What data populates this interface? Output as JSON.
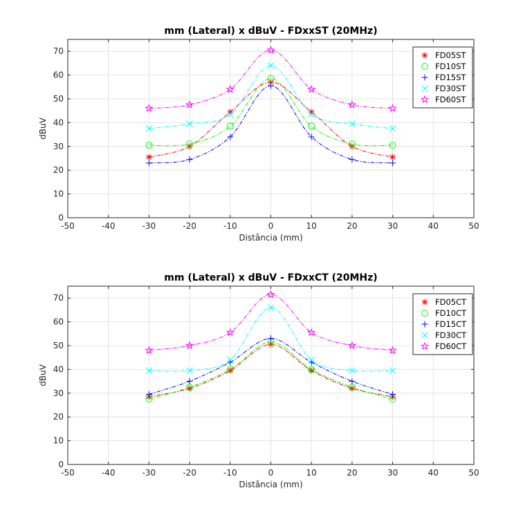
{
  "chart_data": [
    {
      "type": "line",
      "title": "mm (Lateral) x dBuV - FDxxST (20MHz)",
      "xlabel": "Distância (mm)",
      "ylabel": "dBuV",
      "xlim": [
        -50,
        50
      ],
      "ylim": [
        0,
        75
      ],
      "xticks": [
        "-50",
        "-40",
        "-30",
        "-20",
        "-10",
        "0",
        "10",
        "20",
        "30",
        "40",
        "50"
      ],
      "yticks": [
        "0",
        "10",
        "20",
        "30",
        "40",
        "50",
        "60",
        "70"
      ],
      "grid": true,
      "legend_position": "top-right",
      "series": [
        {
          "name": "FD05ST",
          "color": "#ff0000",
          "marker": "asterisk",
          "x": [
            -30,
            -20,
            -10,
            0,
            10,
            20,
            30
          ],
          "y": [
            25.5,
            30,
            44.5,
            57,
            44.5,
            30,
            25.5
          ]
        },
        {
          "name": "FD10ST",
          "color": "#00ff00",
          "marker": "circle",
          "x": [
            -30,
            -20,
            -10,
            0,
            10,
            20,
            30
          ],
          "y": [
            30.5,
            31,
            38.5,
            58.5,
            38.5,
            31,
            30.5
          ]
        },
        {
          "name": "FD15ST",
          "color": "#0000ff",
          "marker": "plus",
          "x": [
            -30,
            -20,
            -10,
            0,
            10,
            20,
            30
          ],
          "y": [
            23,
            24.5,
            34,
            55.5,
            34,
            24.5,
            23
          ]
        },
        {
          "name": "FD30ST",
          "color": "#00ffff",
          "marker": "cross",
          "x": [
            -30,
            -20,
            -10,
            0,
            10,
            20,
            30
          ],
          "y": [
            37.5,
            39.5,
            43.5,
            64,
            43.5,
            39.5,
            37.5
          ]
        },
        {
          "name": "FD60ST",
          "color": "#ff00ff",
          "marker": "star",
          "x": [
            -30,
            -20,
            -10,
            0,
            10,
            20,
            30
          ],
          "y": [
            46,
            47.5,
            54,
            70.5,
            54,
            47.5,
            46
          ]
        }
      ]
    },
    {
      "type": "line",
      "title": "mm (Lateral) x dBuV - FDxxCT (20MHz)",
      "xlabel": "Distância (mm)",
      "ylabel": "dBuV",
      "xlim": [
        -50,
        50
      ],
      "ylim": [
        0,
        75
      ],
      "xticks": [
        "-50",
        "-40",
        "-30",
        "-20",
        "-10",
        "0",
        "10",
        "20",
        "30",
        "40",
        "50"
      ],
      "yticks": [
        "0",
        "10",
        "20",
        "30",
        "40",
        "50",
        "60",
        "70"
      ],
      "grid": true,
      "legend_position": "top-right",
      "series": [
        {
          "name": "FD05CT",
          "color": "#ff0000",
          "marker": "asterisk",
          "x": [
            -30,
            -20,
            -10,
            0,
            10,
            20,
            30
          ],
          "y": [
            28.5,
            32,
            39.5,
            50.5,
            39.5,
            32,
            28.5
          ]
        },
        {
          "name": "FD10CT",
          "color": "#00ff00",
          "marker": "circle",
          "x": [
            -30,
            -20,
            -10,
            0,
            10,
            20,
            30
          ],
          "y": [
            27.5,
            32.5,
            40,
            51.5,
            40,
            32.5,
            27.5
          ]
        },
        {
          "name": "FD15CT",
          "color": "#0000ff",
          "marker": "plus",
          "x": [
            -30,
            -20,
            -10,
            0,
            10,
            20,
            30
          ],
          "y": [
            29.5,
            35,
            43,
            53,
            43,
            35,
            29.5
          ]
        },
        {
          "name": "FD30CT",
          "color": "#00ffff",
          "marker": "cross",
          "x": [
            -30,
            -20,
            -10,
            0,
            10,
            20,
            30
          ],
          "y": [
            39.5,
            39.5,
            44,
            66,
            44,
            39.5,
            39.5
          ]
        },
        {
          "name": "FD60CT",
          "color": "#ff00ff",
          "marker": "star",
          "x": [
            -30,
            -20,
            -10,
            0,
            10,
            20,
            30
          ],
          "y": [
            48,
            50,
            55.5,
            71.5,
            55.5,
            50,
            48
          ]
        }
      ]
    }
  ]
}
